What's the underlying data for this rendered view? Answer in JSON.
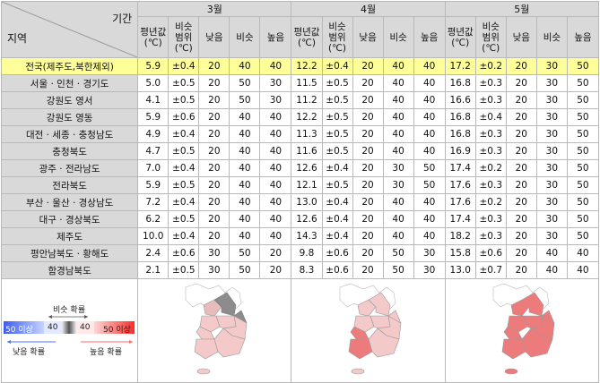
{
  "header": {
    "corner_top": "기간",
    "corner_bottom": "지역",
    "months": [
      "3월",
      "4월",
      "5월"
    ],
    "subcols": [
      [
        "평년값",
        "(℃)"
      ],
      [
        "비슷",
        "범위",
        "(℃)"
      ],
      [
        "낮음"
      ],
      [
        "비슷"
      ],
      [
        "높음"
      ]
    ]
  },
  "rows": [
    {
      "region": "전국(제주도,북한제외)",
      "highlight": true,
      "m3": [
        "5.9",
        "±0.4",
        "20",
        "40",
        "40"
      ],
      "m4": [
        "12.2",
        "±0.4",
        "20",
        "40",
        "40"
      ],
      "m5": [
        "17.2",
        "±0.2",
        "20",
        "30",
        "50"
      ]
    },
    {
      "region": "서울 · 인천 · 경기도",
      "m3": [
        "5.0",
        "±0.5",
        "20",
        "50",
        "30"
      ],
      "m4": [
        "11.5",
        "±0.5",
        "20",
        "40",
        "40"
      ],
      "m5": [
        "16.8",
        "±0.3",
        "20",
        "30",
        "50"
      ]
    },
    {
      "region": "강원도 영서",
      "m3": [
        "4.1",
        "±0.5",
        "20",
        "50",
        "30"
      ],
      "m4": [
        "11.2",
        "±0.5",
        "20",
        "40",
        "40"
      ],
      "m5": [
        "16.6",
        "±0.3",
        "20",
        "30",
        "50"
      ]
    },
    {
      "region": "강원도 영동",
      "m3": [
        "5.9",
        "±0.6",
        "20",
        "40",
        "40"
      ],
      "m4": [
        "12.2",
        "±0.5",
        "20",
        "40",
        "40"
      ],
      "m5": [
        "16.8",
        "±0.4",
        "20",
        "30",
        "50"
      ]
    },
    {
      "region": "대전 · 세종 · 충청남도",
      "m3": [
        "4.9",
        "±0.4",
        "20",
        "40",
        "40"
      ],
      "m4": [
        "11.3",
        "±0.5",
        "20",
        "40",
        "40"
      ],
      "m5": [
        "16.8",
        "±0.3",
        "20",
        "30",
        "50"
      ]
    },
    {
      "region": "충청북도",
      "m3": [
        "4.7",
        "±0.5",
        "20",
        "40",
        "40"
      ],
      "m4": [
        "11.6",
        "±0.5",
        "20",
        "40",
        "40"
      ],
      "m5": [
        "16.9",
        "±0.3",
        "20",
        "30",
        "50"
      ]
    },
    {
      "region": "광주 · 전라남도",
      "m3": [
        "7.0",
        "±0.4",
        "20",
        "40",
        "40"
      ],
      "m4": [
        "12.6",
        "±0.4",
        "20",
        "30",
        "50"
      ],
      "m5": [
        "17.4",
        "±0.2",
        "20",
        "30",
        "50"
      ]
    },
    {
      "region": "전라북도",
      "m3": [
        "5.9",
        "±0.5",
        "20",
        "40",
        "40"
      ],
      "m4": [
        "12.1",
        "±0.5",
        "20",
        "30",
        "50"
      ],
      "m5": [
        "17.6",
        "±0.3",
        "20",
        "30",
        "50"
      ]
    },
    {
      "region": "부산 · 울산 · 경상남도",
      "m3": [
        "7.2",
        "±0.4",
        "20",
        "40",
        "40"
      ],
      "m4": [
        "13.0",
        "±0.4",
        "20",
        "40",
        "40"
      ],
      "m5": [
        "17.6",
        "±0.2",
        "20",
        "30",
        "50"
      ]
    },
    {
      "region": "대구 · 경상북도",
      "m3": [
        "6.2",
        "±0.5",
        "20",
        "40",
        "40"
      ],
      "m4": [
        "12.6",
        "±0.4",
        "20",
        "40",
        "40"
      ],
      "m5": [
        "17.4",
        "±0.3",
        "20",
        "30",
        "50"
      ]
    },
    {
      "region": "제주도",
      "m3": [
        "10.0",
        "±0.4",
        "20",
        "40",
        "40"
      ],
      "m4": [
        "14.3",
        "±0.4",
        "20",
        "40",
        "40"
      ],
      "m5": [
        "18.2",
        "±0.3",
        "20",
        "30",
        "50"
      ]
    },
    {
      "region": "평안남북도 · 황해도",
      "m3": [
        "2.4",
        "±0.6",
        "30",
        "50",
        "20"
      ],
      "m4": [
        "9.8",
        "±0.6",
        "20",
        "50",
        "30"
      ],
      "m5": [
        "15.8",
        "±0.6",
        "20",
        "40",
        "40"
      ]
    },
    {
      "region": "함경남북도",
      "m3": [
        "2.1",
        "±0.5",
        "30",
        "50",
        "20"
      ],
      "m4": [
        "8.3",
        "±0.6",
        "20",
        "50",
        "30"
      ],
      "m5": [
        "13.0",
        "±0.7",
        "20",
        "40",
        "40"
      ]
    }
  ],
  "legend": {
    "similar_label": "비슷 확률",
    "low_label": "낮음 확률",
    "high_label": "높음 확률",
    "low50": "50 이상",
    "low40": "40",
    "high40": "40",
    "high50": "50 이상"
  },
  "colors": {
    "header_bg": "#d9d9d9",
    "highlight_bg": "#ffff99",
    "map_similar": "#8c8c8c",
    "map_high40": "#f7c6c6",
    "map_high50": "#ee7b7b"
  }
}
